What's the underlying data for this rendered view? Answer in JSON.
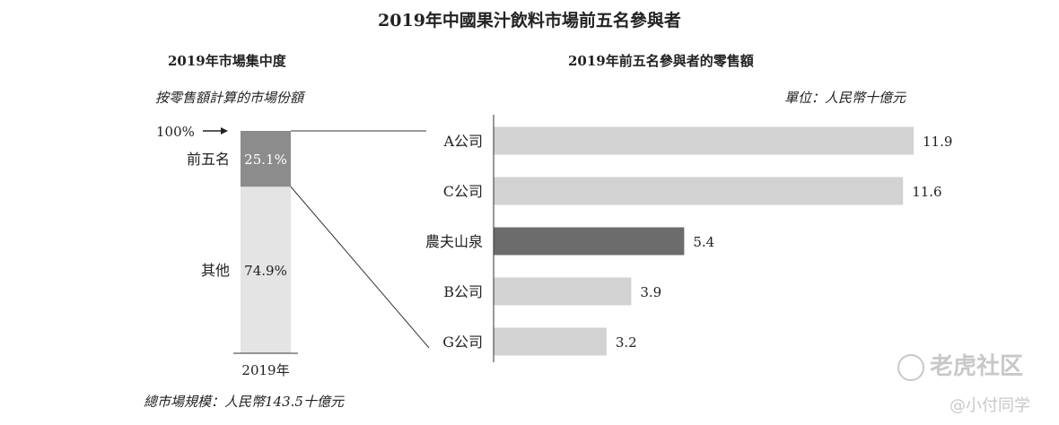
{
  "title": "2019年中國果汁飲料市場前五名參與者",
  "left_panel": {
    "title": "2019年市場集中度",
    "subtitle": "按零售額計算的市場份額",
    "footnote": "總市場規模：人民幣143.5十億元"
  },
  "right_panel": {
    "title": "2019年前五名參與者的零售額",
    "unit": "單位：人民幣十億元"
  },
  "watermark": {
    "brand": "老虎社区",
    "user": "@小付同学"
  },
  "chart_data": [
    {
      "type": "bar",
      "orientation": "vertical-stacked",
      "categories": [
        "2019年"
      ],
      "series": [
        {
          "name": "其他",
          "values": [
            74.9
          ],
          "label": "74.9%",
          "color": "#e4e4e4"
        },
        {
          "name": "前五名",
          "values": [
            25.1
          ],
          "label": "25.1%",
          "color": "#8c8c8c"
        }
      ],
      "top_marker": "100%",
      "xlabel": "",
      "ylabel": ""
    },
    {
      "type": "bar",
      "orientation": "horizontal",
      "categories": [
        "A公司",
        "C公司",
        "農夫山泉",
        "B公司",
        "G公司"
      ],
      "values": [
        11.9,
        11.6,
        5.4,
        3.9,
        3.2
      ],
      "value_labels": [
        "11.9",
        "11.6",
        "5.4",
        "3.9",
        "3.2"
      ],
      "highlight": "農夫山泉",
      "colors": {
        "default": "#d2d2d2",
        "highlight": "#6c6c6c"
      },
      "xlim": [
        0,
        12.4
      ],
      "xlabel": "",
      "ylabel": ""
    }
  ]
}
